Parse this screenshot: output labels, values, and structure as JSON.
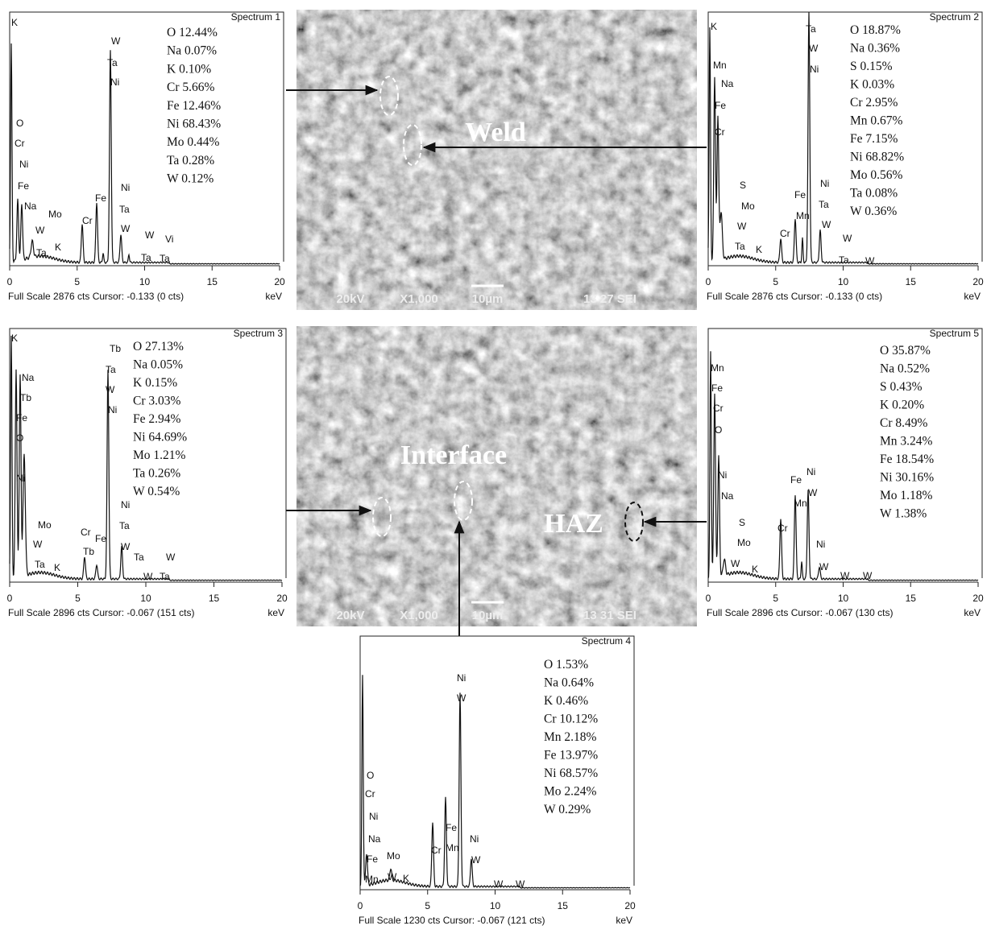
{
  "spectra": [
    {
      "title": "Spectrum 1",
      "peak_labels": [
        "K",
        "W",
        "Ta",
        "Ni",
        "O",
        "Cr",
        "Ni",
        "Fe",
        "Na",
        "Mo",
        "W",
        "K",
        "Ta",
        "Cr",
        "Fe",
        "Ni",
        "Ta",
        "W",
        "W",
        "Vi",
        "Ta",
        "Ta"
      ],
      "composition": [
        "O 12.44%",
        "Na 0.07%",
        "K 0.10%",
        "Cr 5.66%",
        "Fe 12.46%",
        "Ni 68.43%",
        "Mo 0.44%",
        "Ta 0.28%",
        "W 0.12%"
      ],
      "xlim": [
        0,
        20
      ],
      "xticks": [
        0,
        5,
        10,
        15,
        20
      ],
      "unit": "keV",
      "footer": "Full Scale 2876 cts Cursor: -0.133  (0 cts)"
    },
    {
      "title": "Spectrum 2",
      "peak_labels": [
        "K",
        "Ta",
        "W",
        "Ni",
        "Mn",
        "Na",
        "Fe",
        "Cr",
        "S",
        "Mo",
        "W",
        "Ta",
        "K",
        "Cr",
        "Fe",
        "Mn",
        "Ni",
        "Ta",
        "W",
        "W",
        "Ta",
        "W"
      ],
      "composition": [
        "O 18.87%",
        "Na 0.36%",
        "S 0.15%",
        "K 0.03%",
        "Cr 2.95%",
        "Mn 0.67%",
        "Fe 7.15%",
        "Ni 68.82%",
        "Mo 0.56%",
        "Ta 0.08%",
        "W 0.36%"
      ],
      "xlim": [
        0,
        20
      ],
      "xticks": [
        0,
        5,
        10,
        15,
        20
      ],
      "unit": "keV",
      "footer": "Full Scale 2876 cts Cursor: -0.133  (0 cts)"
    },
    {
      "title": "Spectrum 3",
      "peak_labels": [
        "K",
        "Tb",
        "Ta",
        "W",
        "Ni",
        "Na",
        "Tb",
        "Fe",
        "O",
        "Ni",
        "Mo",
        "W",
        "Ta",
        "K",
        "Cr",
        "Fe",
        "Tb",
        "Ni",
        "Ta",
        "W",
        "Ta",
        "W",
        "W",
        "Ta"
      ],
      "composition": [
        "O 27.13%",
        "Na 0.05%",
        "K 0.15%",
        "Cr 3.03%",
        "Fe 2.94%",
        "Ni 64.69%",
        "Mo 1.21%",
        "Ta 0.26%",
        "W 0.54%"
      ],
      "xlim": [
        0,
        20
      ],
      "xticks": [
        0,
        5,
        10,
        15,
        20
      ],
      "unit": "keV",
      "footer": "Full Scale 2896 cts Cursor: -0.067  (151 cts)"
    },
    {
      "title": "Spectrum 4",
      "peak_labels": [
        "O",
        "Cr",
        "Ni",
        "Na",
        "Fe",
        "Mo",
        "Mn",
        "W",
        "K",
        "Cr",
        "Fe",
        "Mn",
        "Ni",
        "W",
        "Ni",
        "W",
        "W",
        "W"
      ],
      "composition": [
        "O 1.53%",
        "Na 0.64%",
        "K 0.46%",
        "Cr 10.12%",
        "Mn 2.18%",
        "Fe 13.97%",
        "Ni 68.57%",
        "Mo 2.24%",
        "W 0.29%"
      ],
      "xlim": [
        0,
        20
      ],
      "xticks": [
        0,
        5,
        10,
        15,
        20
      ],
      "unit": "keV",
      "footer": "Full Scale 1230 cts Cursor: -0.067  (121 cts)"
    },
    {
      "title": "Spectrum 5",
      "peak_labels": [
        "Mn",
        "Fe",
        "Cr",
        "O",
        "Ni",
        "Na",
        "S",
        "Mo",
        "W",
        "K",
        "Cr",
        "Fe",
        "Ni",
        "Mn",
        "W",
        "Ni",
        "W",
        "W",
        "W"
      ],
      "composition": [
        "O 35.87%",
        "Na 0.52%",
        "S 0.43%",
        "K 0.20%",
        "Cr 8.49%",
        "Mn 3.24%",
        "Fe 18.54%",
        "Ni 30.16%",
        "Mo 1.18%",
        "W 1.38%"
      ],
      "xlim": [
        0,
        20
      ],
      "xticks": [
        0,
        5,
        10,
        15,
        20
      ],
      "unit": "keV",
      "footer": "Full Scale 2896 cts Cursor: -0.067  (130 cts)"
    }
  ],
  "sem_images": [
    {
      "labels": [
        "Weld"
      ],
      "voltage": "20kV",
      "magnification": "X1,000",
      "scale_bar": "10µm",
      "info": "13 27 SEI"
    },
    {
      "labels": [
        "Interface",
        "HAZ"
      ],
      "voltage": "20kV",
      "magnification": "X1,000",
      "scale_bar": "10µm",
      "info": "13 31 SEI"
    }
  ]
}
